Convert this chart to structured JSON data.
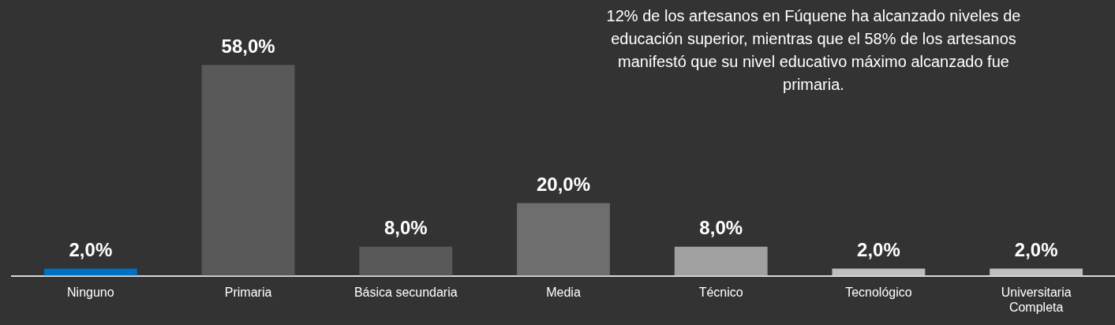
{
  "chart_data": {
    "type": "bar",
    "categories": [
      "Ninguno",
      "Primaria",
      "Básica secundaria",
      "Media",
      "Técnico",
      "Tecnológico",
      "Universitaria Completa"
    ],
    "values": [
      2,
      58,
      8,
      20,
      8,
      2,
      2
    ],
    "colors": [
      "#0070c0",
      "#595959",
      "#595959",
      "#6e6e6e",
      "#a0a0a0",
      "#bfbfbf",
      "#bfbfbf"
    ],
    "value_labels": [
      "2,0%",
      "58,0%",
      "8,0%",
      "20,0%",
      "8,0%",
      "2,0%",
      "2,0%"
    ],
    "grid": false,
    "legend": false,
    "annotations": [
      "12% de los artesanos en Fúquene ha alcanzado niveles de educación superior, mientras que el 58% de los artesanos manifestó que su nivel educativo máximo alcanzado fue primaria."
    ]
  }
}
